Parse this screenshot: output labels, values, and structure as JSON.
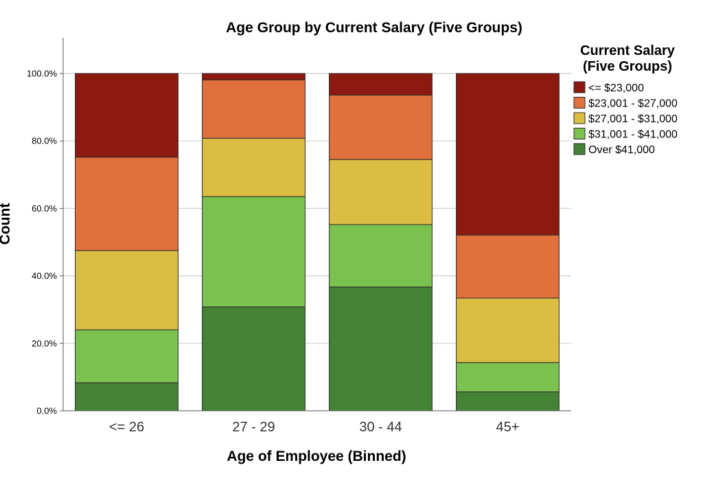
{
  "chart_data": {
    "type": "bar",
    "stacked": true,
    "percent": true,
    "title": "Age Group by Current Salary (Five Groups)",
    "xlabel": "Age of  Employee (Binned)",
    "ylabel": "Count",
    "ylim": [
      0,
      100
    ],
    "yticks": [
      "0.0%",
      "20.0%",
      "40.0%",
      "60.0%",
      "80.0%",
      "100.0%"
    ],
    "categories": [
      "<= 26",
      "27 - 29",
      "30 - 44",
      "45+"
    ],
    "legend_title": [
      "Current Salary",
      "(Five Groups)"
    ],
    "legend_position": "top-right",
    "grid": true,
    "series": [
      {
        "name": "Over $41,000",
        "color": "#448333",
        "values": [
          8.3,
          30.8,
          36.7,
          5.6
        ]
      },
      {
        "name": "$31,001 - $41,000",
        "color": "#7bc14f",
        "values": [
          15.7,
          32.7,
          18.5,
          8.7
        ]
      },
      {
        "name": "$27,001 - $31,000",
        "color": "#dbbd44",
        "values": [
          23.5,
          17.3,
          19.3,
          19.1
        ]
      },
      {
        "name": "$23,001 - $27,000",
        "color": "#e0703c",
        "values": [
          27.7,
          17.3,
          19.1,
          18.7
        ]
      },
      {
        "name": "<= $23,000",
        "color": "#8c1a11",
        "values": [
          24.8,
          1.9,
          6.4,
          47.9
        ]
      }
    ],
    "legend_order": [
      "<= $23,000",
      "$23,001 - $27,000",
      "$27,001 - $31,000",
      "$31,001 - $41,000",
      "Over $41,000"
    ]
  }
}
